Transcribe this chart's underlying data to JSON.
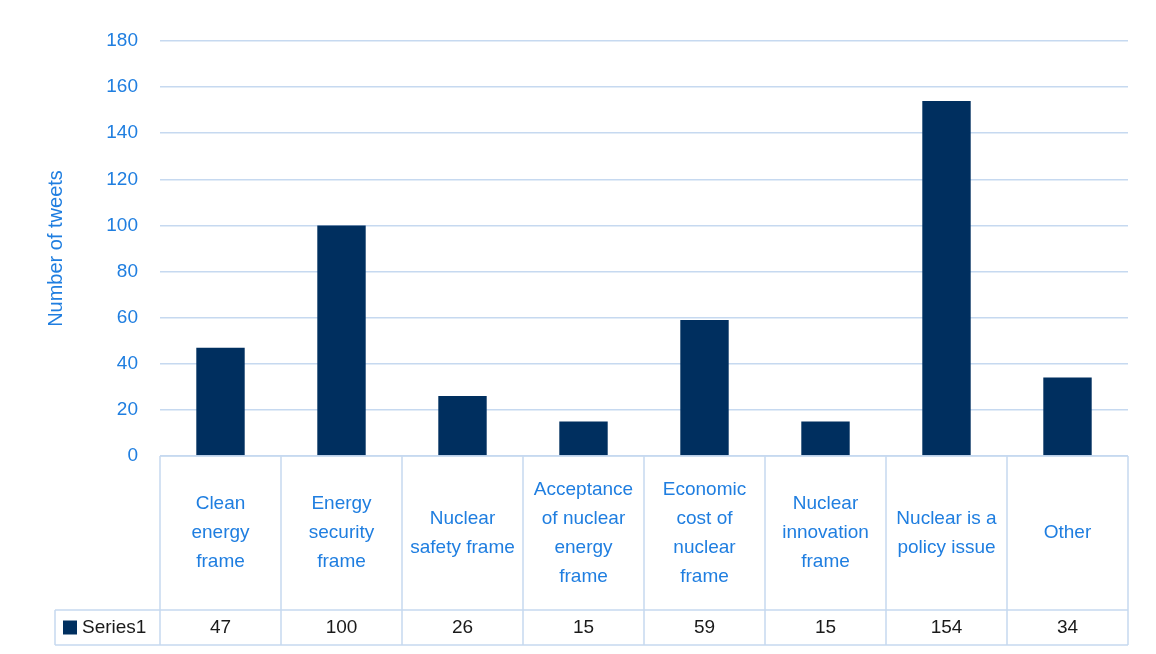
{
  "chart_data": {
    "type": "bar",
    "ylabel": "Number of tweets",
    "categories": [
      "Clean energy frame",
      "Energy security frame",
      "Nuclear safety frame",
      "Acceptance of nuclear energy frame",
      "Economic cost of nuclear frame",
      "Nuclear innovation frame",
      "Nuclear is a policy issue",
      "Other"
    ],
    "series": [
      {
        "name": "Series1",
        "color": "#002f5f",
        "values": [
          47,
          100,
          26,
          15,
          59,
          15,
          154,
          34
        ]
      }
    ],
    "ylim": [
      0,
      180
    ],
    "yticks": [
      0,
      20,
      40,
      60,
      80,
      100,
      120,
      140,
      160,
      180
    ],
    "grid": "y",
    "legend": "bottom",
    "data_labels": true
  }
}
